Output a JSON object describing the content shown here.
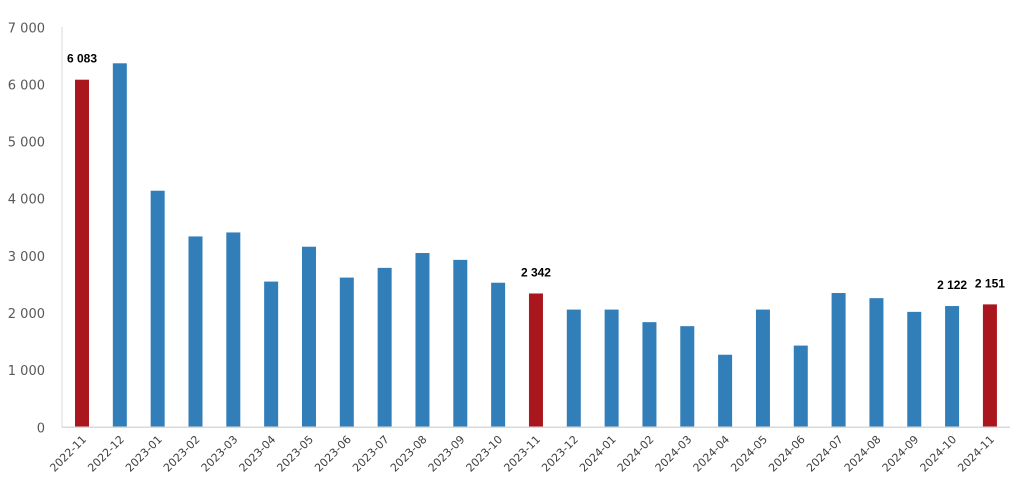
{
  "chart_data": {
    "type": "bar",
    "title": "",
    "xlabel": "",
    "ylabel": "",
    "ylim": [
      0,
      7000
    ],
    "yticks": [
      "0",
      "1 000",
      "2 000",
      "3 000",
      "4 000",
      "5 000",
      "6 000",
      "7 000"
    ],
    "grid": false,
    "legend": "none",
    "categories": [
      "2022-11",
      "2022-12",
      "2023-01",
      "2023-02",
      "2023-03",
      "2023-04",
      "2023-05",
      "2023-06",
      "2023-07",
      "2023-08",
      "2023-09",
      "2023-10",
      "2023-11",
      "2023-12",
      "2024-01",
      "2024-02",
      "2024-03",
      "2024-04",
      "2024-05",
      "2024-06",
      "2024-07",
      "2024-08",
      "2024-09",
      "2024-10",
      "2024-11"
    ],
    "values": [
      6083,
      6370,
      4140,
      3340,
      3410,
      2550,
      3160,
      2620,
      2790,
      3050,
      2930,
      2530,
      2342,
      2060,
      2060,
      1840,
      1770,
      1270,
      2060,
      1430,
      2350,
      2260,
      2020,
      2122,
      2151
    ],
    "highlighted": [
      "2022-11",
      "2023-11",
      "2024-11"
    ],
    "data_labels": {
      "2022-11": "6 083",
      "2023-11": "2 342",
      "2024-10": "2 122",
      "2024-11": "2 151"
    },
    "colors": {
      "default": "#317EB9",
      "highlight": "#AA161D",
      "axis": "#D9D9D9"
    }
  }
}
